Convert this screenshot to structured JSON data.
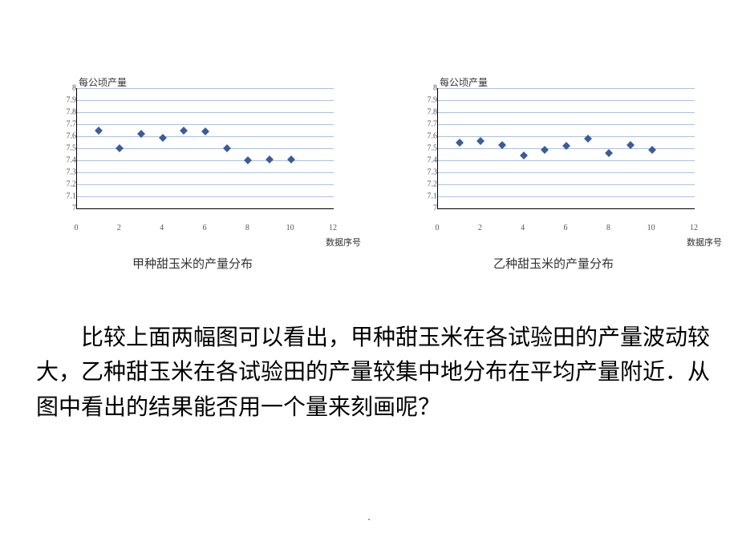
{
  "charts": [
    {
      "type": "scatter",
      "y_axis_title": "每公顷产量",
      "x_axis_title": "数据序号",
      "caption": "甲种甜玉米的产量分布",
      "ylim": [
        7.0,
        8.0
      ],
      "ytick_step": 0.1,
      "y_ticks": [
        7,
        7.1,
        7.2,
        7.3,
        7.4,
        7.5,
        7.6,
        7.7,
        7.8,
        7.9,
        8
      ],
      "xlim": [
        0,
        12
      ],
      "xtick_step": 2,
      "x_ticks": [
        0,
        2,
        4,
        6,
        8,
        10,
        12
      ],
      "marker_color": "#3b5b9a",
      "marker_shape": "diamond",
      "marker_size": 7,
      "grid_color": "#8aa6d6",
      "background_color": "#ffffff",
      "label_fontsize": 12,
      "tick_fontsize": 10,
      "x": [
        1,
        2,
        3,
        4,
        5,
        6,
        7,
        8,
        9,
        10
      ],
      "y": [
        7.65,
        7.5,
        7.62,
        7.59,
        7.65,
        7.64,
        7.5,
        7.4,
        7.41,
        7.41
      ]
    },
    {
      "type": "scatter",
      "y_axis_title": "每公顷产量",
      "x_axis_title": "数据序号",
      "caption": "乙种甜玉米的产量分布",
      "ylim": [
        7.0,
        8.0
      ],
      "ytick_step": 0.1,
      "y_ticks": [
        7,
        7.1,
        7.2,
        7.3,
        7.4,
        7.5,
        7.6,
        7.7,
        7.8,
        7.9,
        8
      ],
      "xlim": [
        0,
        12
      ],
      "xtick_step": 2,
      "x_ticks": [
        0,
        2,
        4,
        6,
        8,
        10,
        12
      ],
      "marker_color": "#3b5b9a",
      "marker_shape": "diamond",
      "marker_size": 7,
      "grid_color": "#8aa6d6",
      "background_color": "#ffffff",
      "label_fontsize": 12,
      "tick_fontsize": 10,
      "x": [
        1,
        2,
        3,
        4,
        5,
        6,
        7,
        8,
        9,
        10
      ],
      "y": [
        7.55,
        7.56,
        7.53,
        7.44,
        7.49,
        7.52,
        7.58,
        7.46,
        7.53,
        7.49
      ]
    }
  ],
  "paragraph": "比较上面两幅图可以看出，甲种甜玉米在各试验田的产量波动较大，乙种甜玉米在各试验田的产量较集中地分布在平均产量附近．从图中看出的结果能否用一个量来刻画呢？",
  "footer": "."
}
